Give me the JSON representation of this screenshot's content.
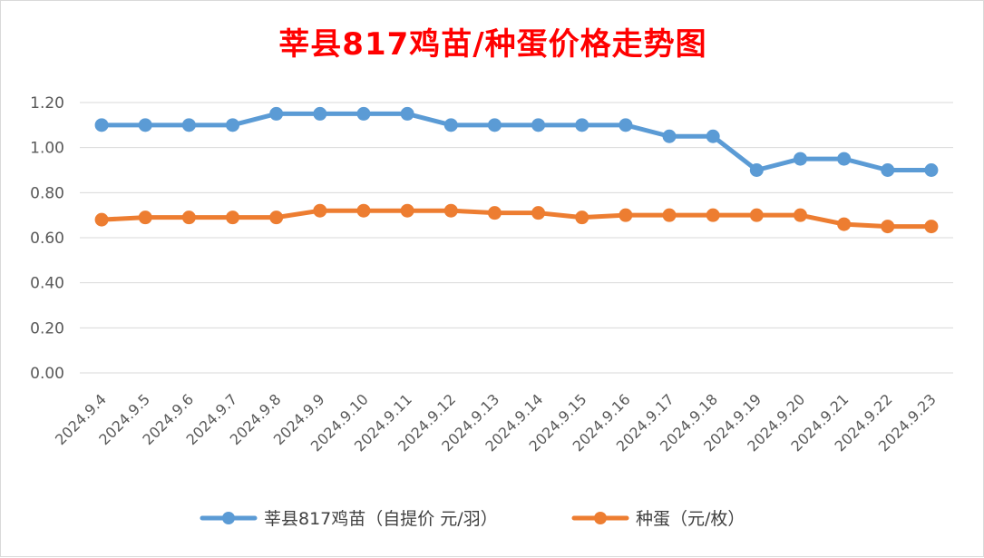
{
  "chart_data": {
    "type": "line",
    "title": "莘县817鸡苗/种蛋价格走势图",
    "xlabel": "",
    "ylabel": "",
    "ylim": [
      0,
      1.2
    ],
    "yticks": [
      "0.00",
      "0.20",
      "0.40",
      "0.60",
      "0.80",
      "1.00",
      "1.20"
    ],
    "grid": "horizontal",
    "legend_position": "bottom",
    "categories": [
      "2024.9.4",
      "2024.9.5",
      "2024.9.6",
      "2024.9.7",
      "2024.9.8",
      "2024.9.9",
      "2024.9.10",
      "2024.9.11",
      "2024.9.12",
      "2024.9.13",
      "2024.9.14",
      "2024.9.15",
      "2024.9.16",
      "2024.9.17",
      "2024.9.18",
      "2024.9.19",
      "2024.9.20",
      "2024.9.21",
      "2024.9.22",
      "2024.9.23"
    ],
    "series": [
      {
        "name": "莘县817鸡苗（自提价 元/羽）",
        "color": "#5b9bd5",
        "values": [
          1.1,
          1.1,
          1.1,
          1.1,
          1.15,
          1.15,
          1.15,
          1.15,
          1.1,
          1.1,
          1.1,
          1.1,
          1.1,
          1.05,
          1.05,
          0.9,
          0.95,
          0.95,
          0.9,
          0.9
        ]
      },
      {
        "name": "种蛋（元/枚）",
        "color": "#ed7d31",
        "values": [
          0.68,
          0.69,
          0.69,
          0.69,
          0.69,
          0.72,
          0.72,
          0.72,
          0.72,
          0.71,
          0.71,
          0.69,
          0.7,
          0.7,
          0.7,
          0.7,
          0.7,
          0.66,
          0.65,
          0.65
        ]
      }
    ]
  }
}
